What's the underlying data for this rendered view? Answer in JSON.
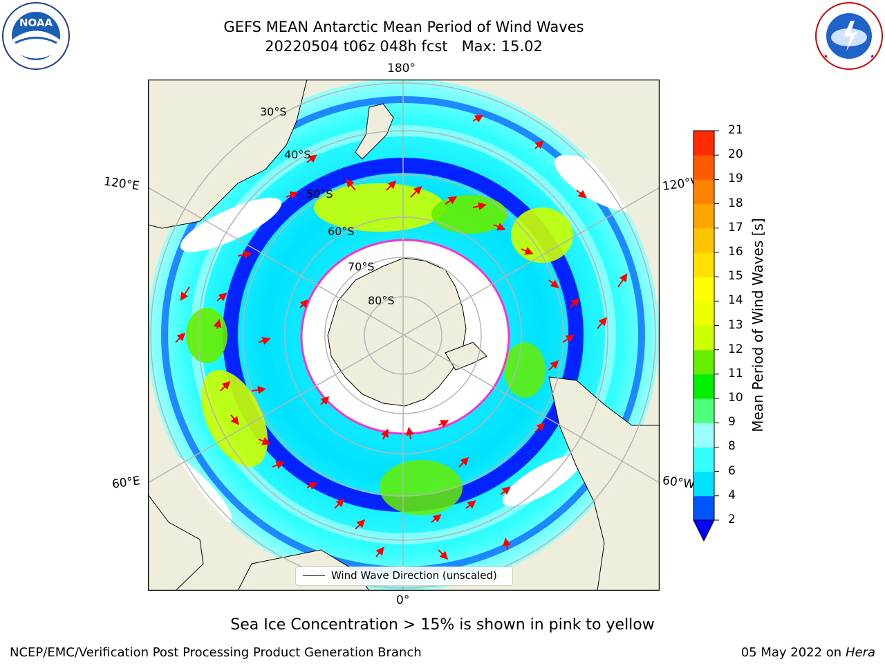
{
  "header": {
    "title_line1": "GEFS MEAN Antarctic Mean Period of Wind Waves",
    "title_line2": "20220504 t06z 048h fcst   Max: 15.02"
  },
  "logos": {
    "noaa": {
      "icon": "noaa-logo",
      "text": "NOAA",
      "ring_text": "NATIONAL OCEANIC AND ATMOSPHERIC ADMINISTRATION · U.S. DEPARTMENT OF COMMERCE"
    },
    "nws": {
      "icon": "nws-logo",
      "ring_text": "NATIONAL WEATHER SERVICE"
    }
  },
  "map": {
    "projection": "south-polar-stereographic",
    "longitude_labels": {
      "top": "180°",
      "bottom": "0°",
      "upper_left": "120°E",
      "upper_right": "120°W",
      "lower_left": "60°E",
      "lower_right": "60°W"
    },
    "latitude_labels": [
      "30°S",
      "40°S",
      "50°S",
      "60°S",
      "70°S",
      "80°S"
    ],
    "legend_label": "Wind Wave Direction (unscaled)",
    "colors": {
      "land": "#efeddc",
      "ice_edge": "#ff33cc",
      "arrow": "#ff0000",
      "grid": "#b4b4b4"
    }
  },
  "colorbar": {
    "label": "Mean Period of Wind Waves [s]",
    "ticks": [
      "2",
      "4",
      "6",
      "8",
      "9",
      "10",
      "11",
      "12",
      "13",
      "14",
      "15",
      "16",
      "17",
      "18",
      "19",
      "20",
      "21"
    ],
    "colors": [
      "#0055ff",
      "#00e1ff",
      "#33ffff",
      "#9afffb",
      "#4dff7a",
      "#00ee00",
      "#66ee00",
      "#ccff00",
      "#eeff00",
      "#ffff00",
      "#ffe100",
      "#ffc400",
      "#ffa500",
      "#ff8300",
      "#ff5a00",
      "#ff2a00"
    ],
    "under_color": "#0000ff"
  },
  "footnote": "Sea Ice Concentration > 15% is shown in pink to yellow",
  "footer": {
    "credit": "NCEP/EMC/Verification Post Processing Product Generation Branch",
    "date": "05 May 2022 on",
    "machine": "Hera"
  }
}
